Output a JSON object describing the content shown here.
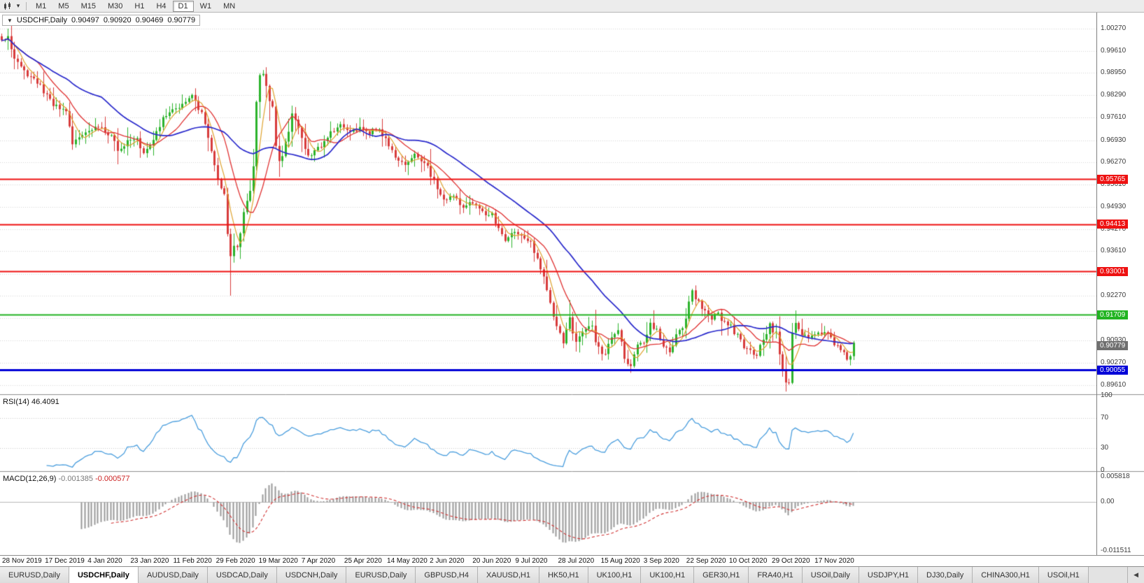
{
  "toolbar": {
    "timeframes": [
      {
        "label": "M1",
        "active": false
      },
      {
        "label": "M5",
        "active": false
      },
      {
        "label": "M15",
        "active": false
      },
      {
        "label": "M30",
        "active": false
      },
      {
        "label": "H1",
        "active": false
      },
      {
        "label": "H4",
        "active": false
      },
      {
        "label": "D1",
        "active": true
      },
      {
        "label": "W1",
        "active": false
      },
      {
        "label": "MN",
        "active": false
      }
    ],
    "dropdown_glyph": "▾"
  },
  "chart": {
    "symbol_label": "USDCHF,Daily",
    "collapse_glyph": "▼",
    "ohlc": {
      "open": "0.90497",
      "high": "0.90920",
      "low": "0.90469",
      "close": "0.90779"
    }
  },
  "rsi_panel": {
    "label": "RSI(14)",
    "value": "46.4091",
    "ticks": [
      {
        "label": "100",
        "value": 100
      },
      {
        "label": "70",
        "value": 70
      },
      {
        "label": "30",
        "value": 30
      },
      {
        "label": "0",
        "value": 0
      }
    ]
  },
  "macd_panel": {
    "label": "MACD(12,26,9)",
    "main_value": "-0.001385",
    "signal_value": "-0.000577",
    "ticks": [
      {
        "label": "0.005818",
        "value": 0.005818
      },
      {
        "label": "0.00",
        "value": 0
      },
      {
        "label": "-0.011511",
        "value": -0.011511
      }
    ]
  },
  "tabbar": {
    "scroll_left_glyph": "◀",
    "tabs": [
      {
        "label": "EURUSD,Daily",
        "active": false
      },
      {
        "label": "USDCHF,Daily",
        "active": true
      },
      {
        "label": "AUDUSD,Daily",
        "active": false
      },
      {
        "label": "USDCAD,Daily",
        "active": false
      },
      {
        "label": "USDCNH,Daily",
        "active": false
      },
      {
        "label": "EURUSD,Daily",
        "active": false
      },
      {
        "label": "GBPUSD,H4",
        "active": false
      },
      {
        "label": "XAUUSD,H1",
        "active": false
      },
      {
        "label": "HK50,H1",
        "active": false
      },
      {
        "label": "UK100,H1",
        "active": false
      },
      {
        "label": "UK100,H1",
        "active": false
      },
      {
        "label": "GER30,H1",
        "active": false
      },
      {
        "label": "FRA40,H1",
        "active": false
      },
      {
        "label": "USOil,Daily",
        "active": false
      },
      {
        "label": "USDJPY,H1",
        "active": false
      },
      {
        "label": "DJ30,Daily",
        "active": false
      },
      {
        "label": "CHINA300,H1",
        "active": false
      },
      {
        "label": "USOil,H1",
        "active": false
      }
    ]
  },
  "chart_data": {
    "type": "candlestick",
    "symbol": "USDCHF",
    "timeframe": "Daily",
    "num_candles": 265,
    "data_width_frac": 0.78,
    "price_axis": {
      "max": 1.0075,
      "min": 0.8935,
      "ticks": [
        {
          "label": "1.00270",
          "value": 1.0027
        },
        {
          "label": "0.99610",
          "value": 0.9961
        },
        {
          "label": "0.98950",
          "value": 0.9895
        },
        {
          "label": "0.98290",
          "value": 0.9829
        },
        {
          "label": "0.97610",
          "value": 0.9761
        },
        {
          "label": "0.96930",
          "value": 0.9693
        },
        {
          "label": "0.96270",
          "value": 0.9627
        },
        {
          "label": "0.95610",
          "value": 0.9561
        },
        {
          "label": "0.94930",
          "value": 0.9493
        },
        {
          "label": "0.94270",
          "value": 0.9427
        },
        {
          "label": "0.93610",
          "value": 0.9361
        },
        {
          "label": "0.92930",
          "value": 0.9293
        },
        {
          "label": "0.92270",
          "value": 0.9227
        },
        {
          "label": "0.91610",
          "value": 0.9161
        },
        {
          "label": "0.90930",
          "value": 0.9093
        },
        {
          "label": "0.90270",
          "value": 0.9027
        },
        {
          "label": "0.89610",
          "value": 0.8961
        }
      ]
    },
    "x_axis": {
      "labels": [
        "28 Nov 2019",
        "17 Dec 2019",
        "4 Jan 2020",
        "23 Jan 2020",
        "11 Feb 2020",
        "29 Feb 2020",
        "19 Mar 2020",
        "7 Apr 2020",
        "25 Apr 2020",
        "14 May 2020",
        "2 Jun 2020",
        "20 Jun 2020",
        "9 Jul 2020",
        "28 Jul 2020",
        "15 Aug 2020",
        "3 Sep 2020",
        "22 Sep 2020",
        "10 Oct 2020",
        "29 Oct 2020",
        "17 Nov 2020"
      ]
    },
    "h_lines": [
      {
        "price": 0.95765,
        "label": "0.95765",
        "color": "#ee1111",
        "width": 2
      },
      {
        "price": 0.94413,
        "label": "0.94413",
        "color": "#ee1111",
        "width": 2
      },
      {
        "price": 0.93001,
        "label": "0.93001",
        "color": "#ee1111",
        "width": 2
      },
      {
        "price": 0.91709,
        "label": "0.91709",
        "color": "#22b422",
        "width": 2
      },
      {
        "price": 0.90055,
        "label": "0.90055",
        "color": "#0000d8",
        "width": 3
      }
    ],
    "current_price": {
      "value": 0.90779,
      "label": "0.90779",
      "tag_color": "#6f6f6f"
    },
    "ma_lines": [
      {
        "name": "ma-fast",
        "period": 5,
        "color": "#dfa32e",
        "width": 1.2
      },
      {
        "name": "ma-mid",
        "period": 12,
        "color": "#e03232",
        "width": 1.3
      },
      {
        "name": "ma-slow",
        "period": 32,
        "color": "#2929cc",
        "width": 1.7
      }
    ],
    "rsi": {
      "period": 14,
      "levels": [
        70,
        30
      ],
      "last": 46.4091
    },
    "macd": {
      "fast": 12,
      "slow": 26,
      "signal": 9,
      "last_main": -0.001385,
      "last_signal": -0.000577,
      "scale_max": 0.0068,
      "scale_min": -0.0125
    },
    "colors": {
      "up": "#2bb32b",
      "down": "#d83b3b",
      "grid": "#d6d6d6",
      "rsi_line": "#4a9ede",
      "macd_hist": "#999999",
      "macd_signal": "#d03030",
      "zero_line": "#b8b8b8",
      "separator": "#909090"
    },
    "wick_overrides": [
      [
        2,
        "h",
        1.0027
      ],
      [
        71,
        "l",
        0.9228
      ],
      [
        81,
        "h",
        0.9903
      ],
      [
        244,
        "l",
        0.8961
      ]
    ],
    "candles_anchor_closes": [
      [
        0,
        0.999
      ],
      [
        2,
        1.0
      ],
      [
        4,
        0.994
      ],
      [
        6,
        0.9908
      ],
      [
        9,
        0.9882
      ],
      [
        12,
        0.9856
      ],
      [
        14,
        0.9826
      ],
      [
        17,
        0.9792
      ],
      [
        20,
        0.9776
      ],
      [
        22,
        0.9688
      ],
      [
        24,
        0.97
      ],
      [
        27,
        0.9724
      ],
      [
        31,
        0.9736
      ],
      [
        34,
        0.9702
      ],
      [
        36,
        0.9666
      ],
      [
        39,
        0.969
      ],
      [
        42,
        0.9702
      ],
      [
        44,
        0.9656
      ],
      [
        47,
        0.97
      ],
      [
        50,
        0.9754
      ],
      [
        54,
        0.9788
      ],
      [
        57,
        0.9814
      ],
      [
        59,
        0.9836
      ],
      [
        61,
        0.9792
      ],
      [
        63,
        0.9744
      ],
      [
        65,
        0.9656
      ],
      [
        67,
        0.959
      ],
      [
        69,
        0.9532
      ],
      [
        70,
        0.9434
      ],
      [
        71,
        0.9336
      ],
      [
        72,
        0.9396
      ],
      [
        73,
        0.9362
      ],
      [
        74,
        0.9422
      ],
      [
        75,
        0.9486
      ],
      [
        77,
        0.9532
      ],
      [
        78,
        0.9626
      ],
      [
        79,
        0.9778
      ],
      [
        80,
        0.9862
      ],
      [
        81,
        0.9886
      ],
      [
        82,
        0.984
      ],
      [
        84,
        0.979
      ],
      [
        86,
        0.9602
      ],
      [
        88,
        0.9682
      ],
      [
        90,
        0.9768
      ],
      [
        92,
        0.973
      ],
      [
        94,
        0.9662
      ],
      [
        96,
        0.9642
      ],
      [
        99,
        0.968
      ],
      [
        102,
        0.9714
      ],
      [
        105,
        0.974
      ],
      [
        108,
        0.9716
      ],
      [
        111,
        0.973
      ],
      [
        114,
        0.9714
      ],
      [
        116,
        0.973
      ],
      [
        119,
        0.97
      ],
      [
        122,
        0.9646
      ],
      [
        125,
        0.962
      ],
      [
        128,
        0.965
      ],
      [
        131,
        0.9626
      ],
      [
        133,
        0.959
      ],
      [
        135,
        0.9546
      ],
      [
        137,
        0.9512
      ],
      [
        140,
        0.9526
      ],
      [
        143,
        0.9496
      ],
      [
        146,
        0.9506
      ],
      [
        149,
        0.9476
      ],
      [
        152,
        0.947
      ],
      [
        154,
        0.9432
      ],
      [
        156,
        0.9396
      ],
      [
        159,
        0.9416
      ],
      [
        162,
        0.9396
      ],
      [
        164,
        0.9386
      ],
      [
        166,
        0.9342
      ],
      [
        168,
        0.9286
      ],
      [
        170,
        0.9206
      ],
      [
        172,
        0.9136
      ],
      [
        174,
        0.9092
      ],
      [
        176,
        0.9156
      ],
      [
        178,
        0.9096
      ],
      [
        180,
        0.9126
      ],
      [
        183,
        0.9136
      ],
      [
        185,
        0.9066
      ],
      [
        187,
        0.9046
      ],
      [
        189,
        0.9106
      ],
      [
        191,
        0.912
      ],
      [
        193,
        0.9036
      ],
      [
        195,
        0.9022
      ],
      [
        197,
        0.9076
      ],
      [
        199,
        0.9092
      ],
      [
        201,
        0.9136
      ],
      [
        203,
        0.9126
      ],
      [
        205,
        0.9082
      ],
      [
        207,
        0.9062
      ],
      [
        209,
        0.9112
      ],
      [
        211,
        0.9136
      ],
      [
        213,
        0.9202
      ],
      [
        214,
        0.9232
      ],
      [
        216,
        0.9206
      ],
      [
        218,
        0.9186
      ],
      [
        220,
        0.9162
      ],
      [
        222,
        0.9176
      ],
      [
        224,
        0.9146
      ],
      [
        226,
        0.9136
      ],
      [
        228,
        0.9106
      ],
      [
        230,
        0.9076
      ],
      [
        232,
        0.9062
      ],
      [
        234,
        0.9052
      ],
      [
        236,
        0.9096
      ],
      [
        238,
        0.9136
      ],
      [
        240,
        0.9112
      ],
      [
        241,
        0.9062
      ],
      [
        242,
        0.9012
      ],
      [
        243,
        0.8978
      ],
      [
        244,
        0.897
      ],
      [
        245,
        0.9106
      ],
      [
        246,
        0.9136
      ],
      [
        248,
        0.9116
      ],
      [
        250,
        0.9102
      ],
      [
        252,
        0.9106
      ],
      [
        254,
        0.9116
      ],
      [
        256,
        0.9112
      ],
      [
        258,
        0.9086
      ],
      [
        260,
        0.9062
      ],
      [
        262,
        0.9042
      ],
      [
        263,
        0.905
      ],
      [
        264,
        0.9078
      ]
    ]
  }
}
